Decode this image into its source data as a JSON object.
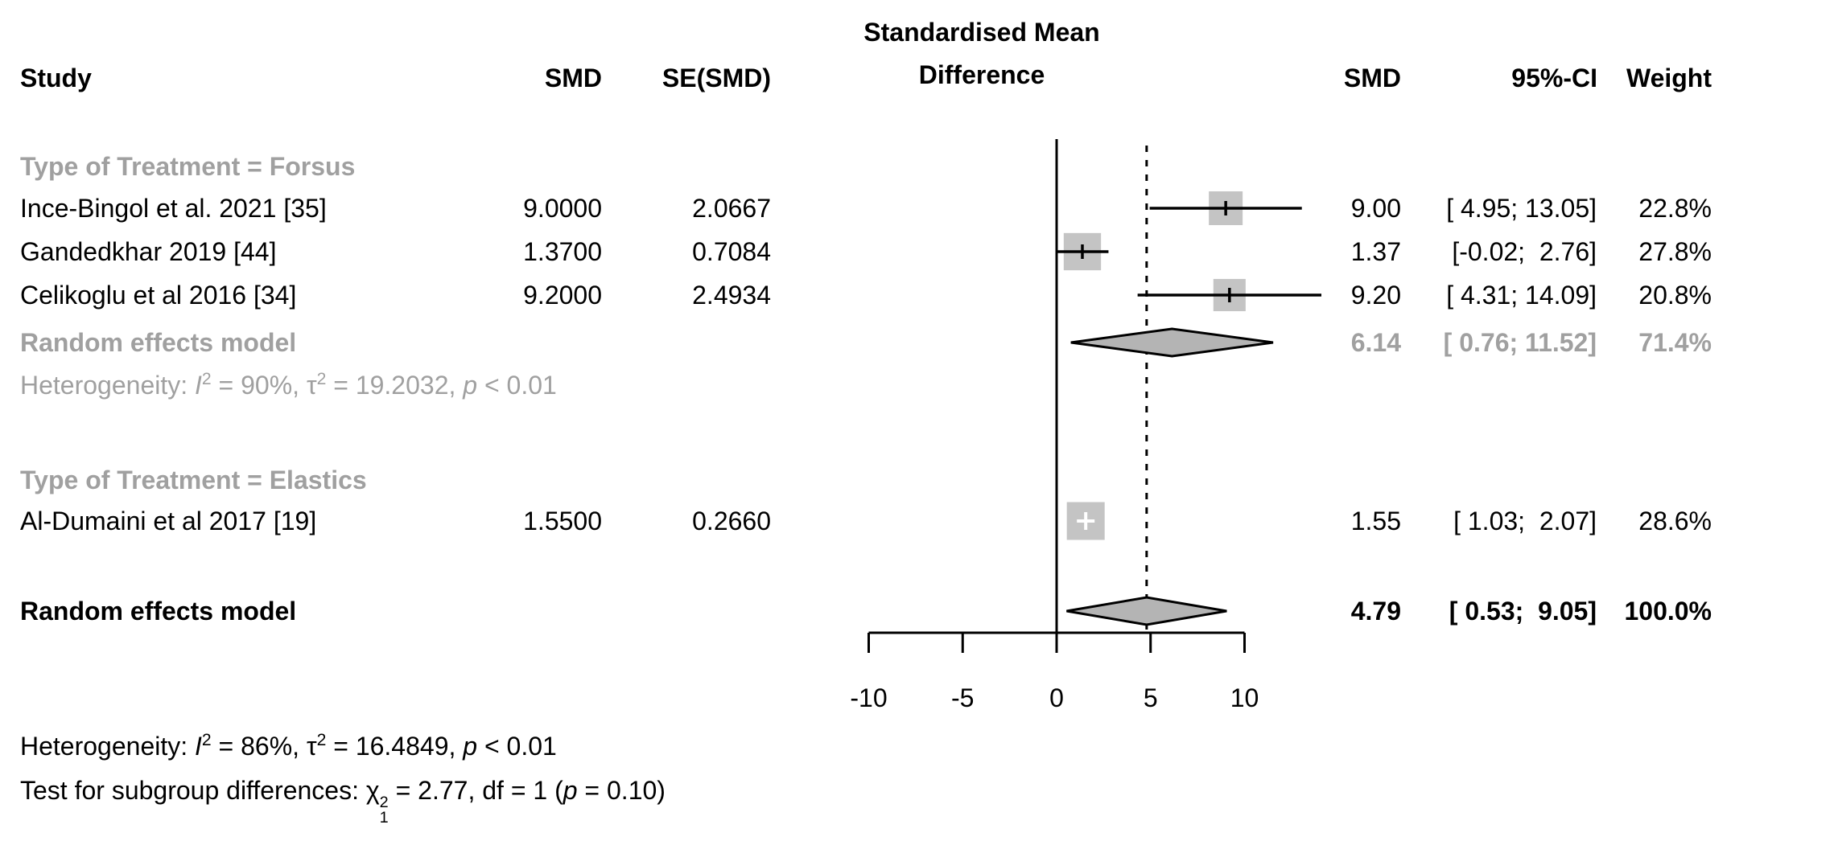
{
  "chart_data": {
    "type": "forest",
    "effect_header": [
      "Standardised Mean",
      "Difference"
    ],
    "col_headers": {
      "study": "Study",
      "smd": "SMD",
      "se": "SE(SMD)",
      "smd_right": "SMD",
      "ci": "95%-CI",
      "weight": "Weight"
    },
    "axis": {
      "min": -10,
      "max": 10,
      "ticks": [
        -10,
        -5,
        0,
        5,
        10
      ],
      "tick_labels": [
        "-10",
        "-5",
        "0",
        "5",
        "10"
      ],
      "zero_line": 0,
      "dashed_line_at": 4.79
    },
    "groups": [
      {
        "label": "Type of Treatment = Forsus",
        "studies": [
          {
            "name": "Ince-Bingol et al. 2021 [35]",
            "smd_col": "9.0000",
            "se_col": "2.0667",
            "est": 9.0,
            "lo": 4.95,
            "hi": 13.05,
            "est_text": "9.00",
            "ci_text": "[ 4.95; 13.05]",
            "weight_text": "22.8%",
            "weight": 22.8
          },
          {
            "name": "Gandedkhar 2019 [44]",
            "smd_col": "1.3700",
            "se_col": "0.7084",
            "est": 1.37,
            "lo": -0.02,
            "hi": 2.76,
            "est_text": "1.37",
            "ci_text": "[-0.02;  2.76]",
            "weight_text": "27.8%",
            "weight": 27.8
          },
          {
            "name": "Celikoglu et al 2016 [34]",
            "smd_col": "9.2000",
            "se_col": "2.4934",
            "est": 9.2,
            "lo": 4.31,
            "hi": 14.09,
            "est_text": "9.20",
            "ci_text": "[ 4.31; 14.09]",
            "weight_text": "20.8%",
            "weight": 20.8
          }
        ],
        "pooled": {
          "label": "Random effects model",
          "est": 6.14,
          "lo": 0.76,
          "hi": 11.52,
          "est_text": "6.14",
          "ci_text": "[ 0.76; 11.52]",
          "weight_text": "71.4%"
        },
        "heterogeneity": [
          {
            "t": "Heterogeneity: "
          },
          {
            "t": "I",
            "i": true
          },
          {
            "t": "2",
            "sup": true
          },
          {
            "t": " = 90%, "
          },
          {
            "t": "τ"
          },
          {
            "t": "2",
            "sup": true
          },
          {
            "t": " = 19.2032, "
          },
          {
            "t": "p",
            "i": true
          },
          {
            "t": " < 0.01"
          }
        ]
      },
      {
        "label": "Type of Treatment = Elastics",
        "studies": [
          {
            "name": "Al-Dumaini et al 2017 [19]",
            "smd_col": "1.5500",
            "se_col": "0.2660",
            "est": 1.55,
            "lo": 1.03,
            "hi": 2.07,
            "est_text": "1.55",
            "ci_text": "[ 1.03;  2.07]",
            "weight_text": "28.6%",
            "weight": 28.6
          }
        ]
      }
    ],
    "overall": {
      "label": "Random effects model",
      "est": 4.79,
      "lo": 0.53,
      "hi": 9.05,
      "est_text": "4.79",
      "ci_text": "[ 0.53;  9.05]",
      "weight_text": "100.0%"
    },
    "notes": [
      [
        {
          "t": "Heterogeneity: "
        },
        {
          "t": "I",
          "i": true
        },
        {
          "t": "2",
          "sup": true
        },
        {
          "t": " = 86%, "
        },
        {
          "t": "τ"
        },
        {
          "t": "2",
          "sup": true
        },
        {
          "t": " = 16.4849, "
        },
        {
          "t": "p",
          "i": true
        },
        {
          "t": " < 0.01"
        }
      ],
      [
        {
          "t": "Test for subgroup differences: "
        },
        {
          "t": "χ"
        },
        {
          "stack": {
            "sup": "2",
            "sub": "1"
          }
        },
        {
          "t": " = 2.77, df = 1 ("
        },
        {
          "t": "p",
          "i": true
        },
        {
          "t": " = 0.10)"
        }
      ]
    ],
    "colors": {
      "square": "#c4c4c4",
      "diamond": "#b4b4b4",
      "gray_text": "#a0a0a0",
      "line": "#000000"
    }
  }
}
